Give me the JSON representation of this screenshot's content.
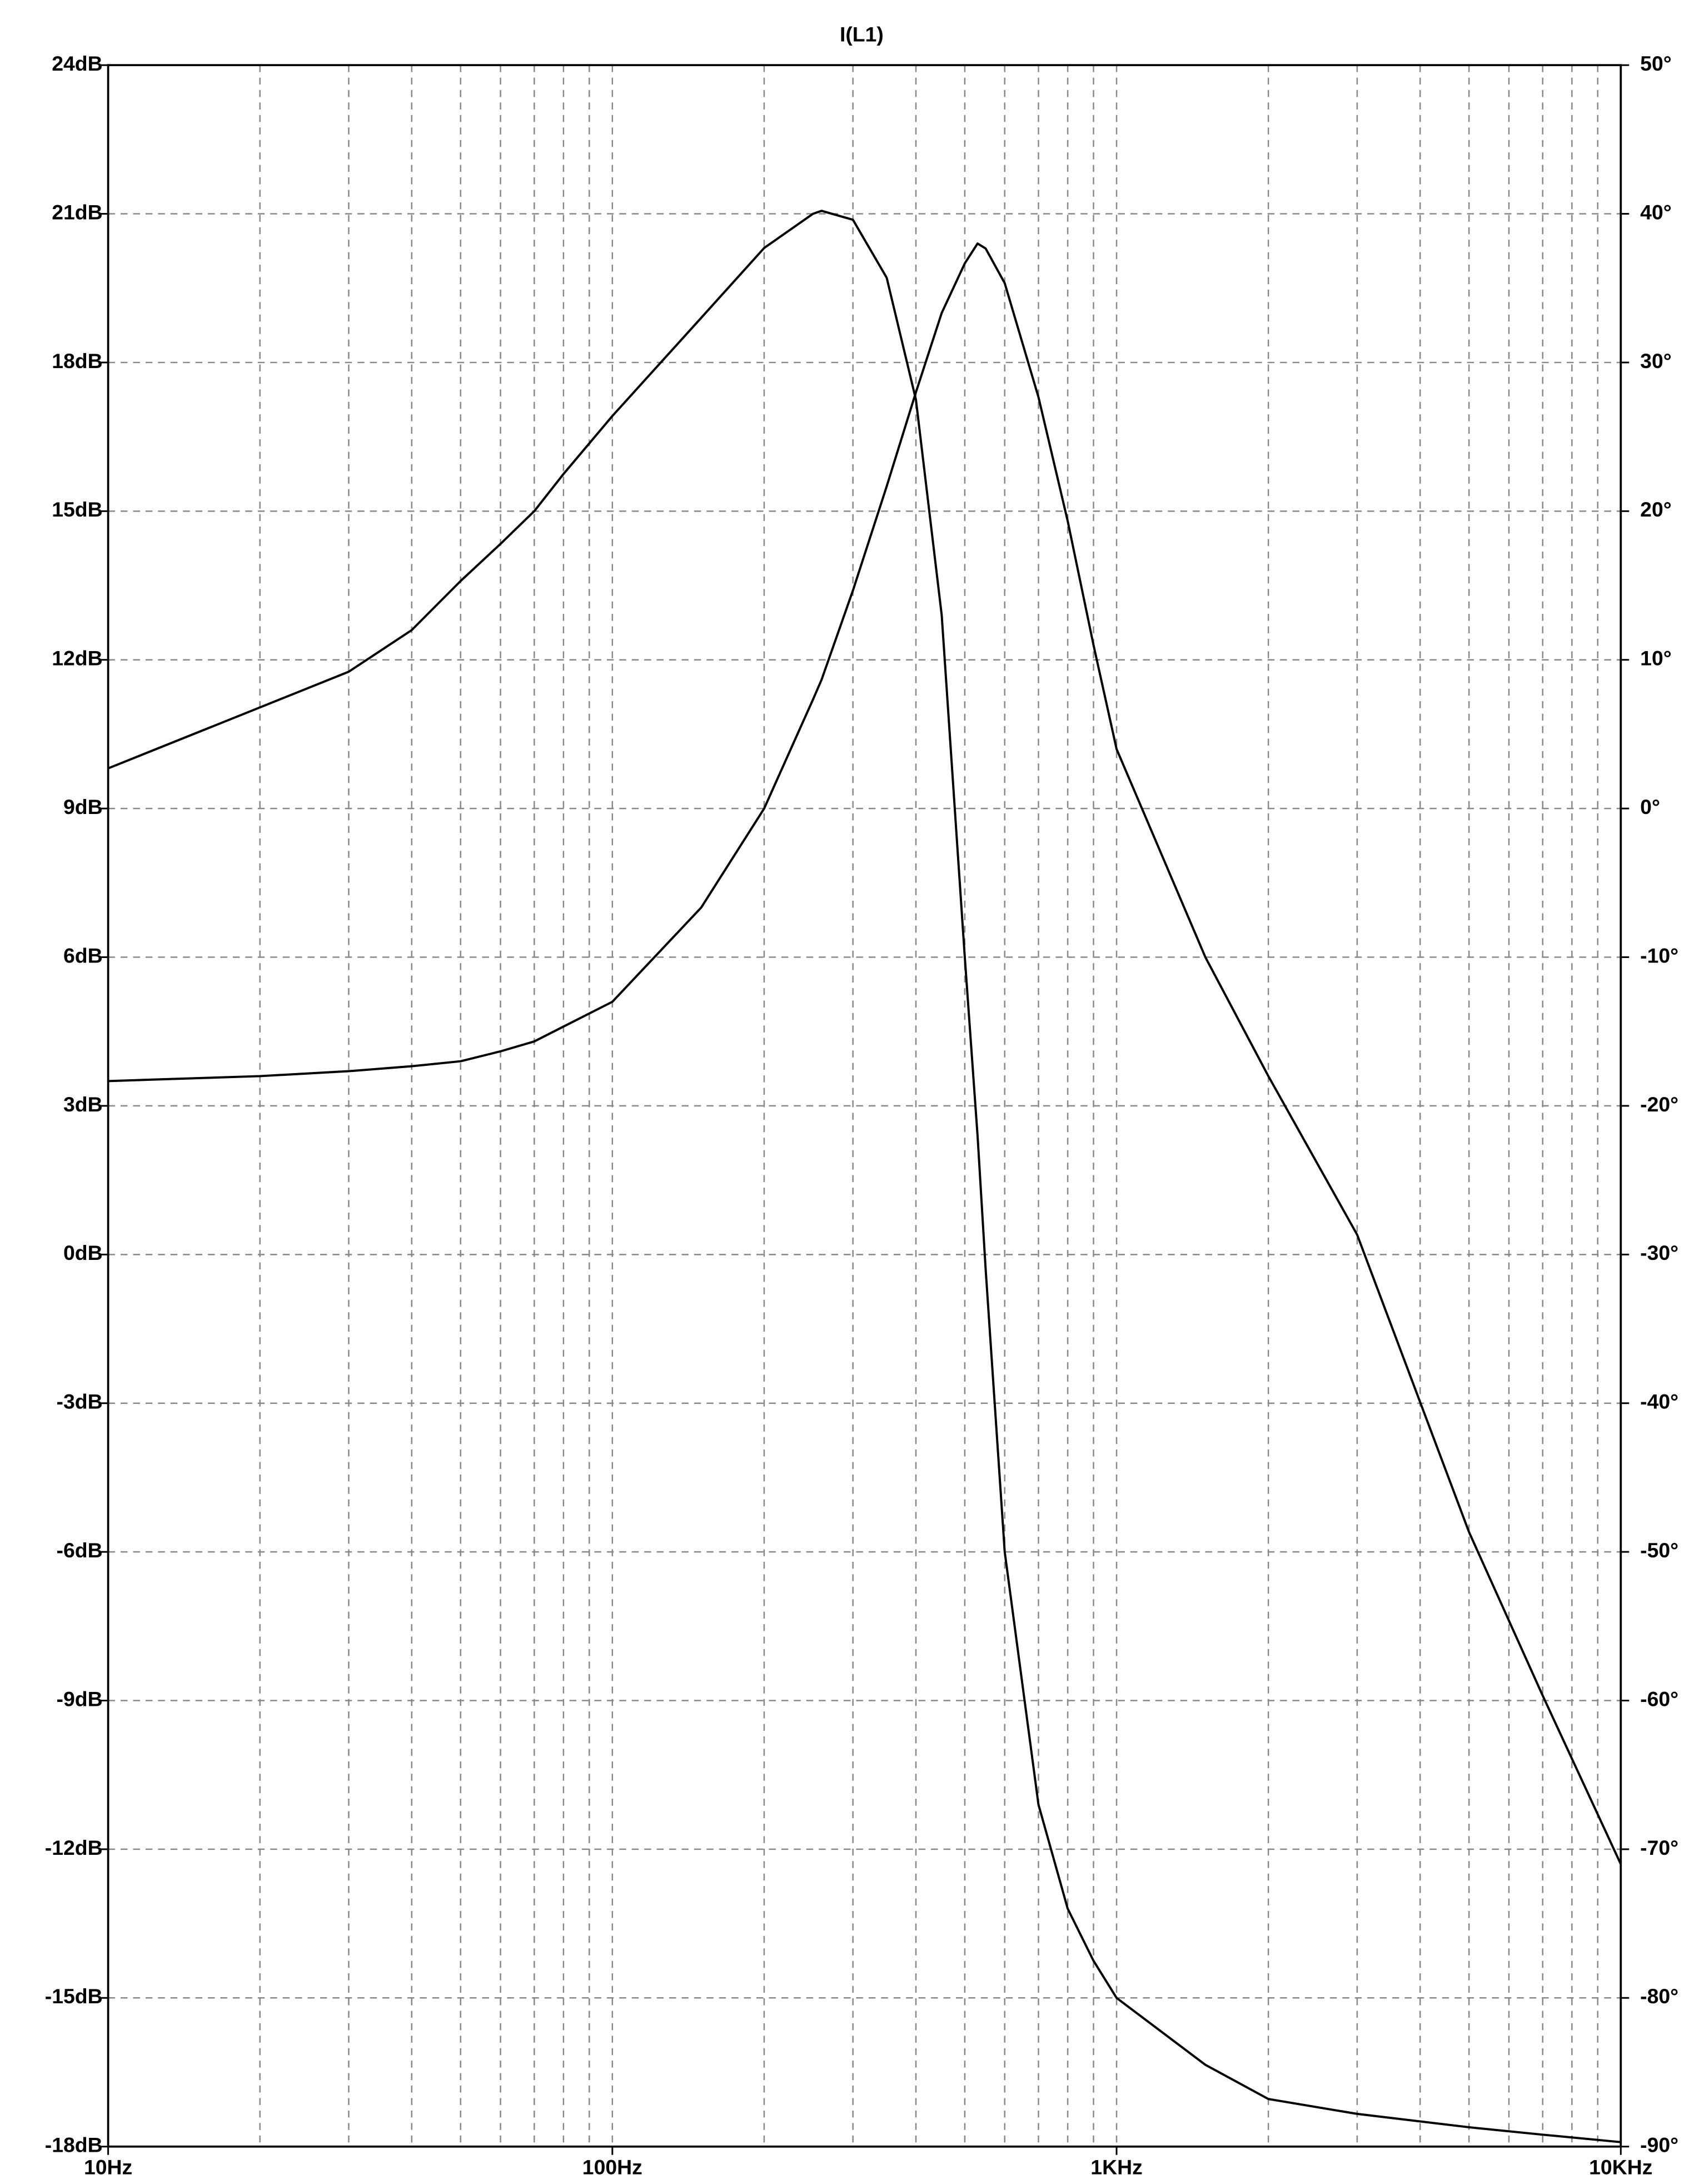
{
  "chart_data": {
    "type": "line",
    "title": "I(L1)",
    "xscale": "log",
    "grid": true,
    "grid_style": "dashed",
    "x": [
      10,
      20,
      30,
      40,
      50,
      60,
      70,
      80,
      100,
      150,
      200,
      250,
      260,
      300,
      350,
      400,
      450,
      500,
      530,
      550,
      600,
      700,
      800,
      900,
      1000,
      1500,
      2000,
      3000,
      5000,
      7000,
      10000
    ],
    "xlim": [
      10,
      10000
    ],
    "xticks": [
      {
        "value": 10,
        "label": "10Hz"
      },
      {
        "value": 100,
        "label": "100Hz"
      },
      {
        "value": 1000,
        "label": "1KHz"
      },
      {
        "value": 10000,
        "label": "10KHz"
      }
    ],
    "xminorticks": [
      20,
      30,
      40,
      50,
      60,
      70,
      80,
      90,
      200,
      300,
      400,
      500,
      600,
      700,
      800,
      900,
      2000,
      3000,
      4000,
      5000,
      6000,
      7000,
      8000,
      9000
    ],
    "ylim": [
      -18,
      24
    ],
    "yticks": [
      {
        "value": -18,
        "label": "-18dB"
      },
      {
        "value": -15,
        "label": "-15dB"
      },
      {
        "value": -12,
        "label": "-12dB"
      },
      {
        "value": -9,
        "label": "-9dB"
      },
      {
        "value": -6,
        "label": "-6dB"
      },
      {
        "value": -3,
        "label": "-3dB"
      },
      {
        "value": 0,
        "label": "0dB"
      },
      {
        "value": 3,
        "label": "3dB"
      },
      {
        "value": 6,
        "label": "6dB"
      },
      {
        "value": 9,
        "label": "9dB"
      },
      {
        "value": 12,
        "label": "12dB"
      },
      {
        "value": 15,
        "label": "15dB"
      },
      {
        "value": 18,
        "label": "18dB"
      },
      {
        "value": 21,
        "label": "21dB"
      },
      {
        "value": 24,
        "label": "24dB"
      }
    ],
    "y2lim": [
      -90,
      50
    ],
    "y2ticks": [
      {
        "value": -90,
        "label": "-90°"
      },
      {
        "value": -80,
        "label": "-80°"
      },
      {
        "value": -70,
        "label": "-70°"
      },
      {
        "value": -60,
        "label": "-60°"
      },
      {
        "value": -50,
        "label": "-50°"
      },
      {
        "value": -40,
        "label": "-40°"
      },
      {
        "value": -30,
        "label": "-30°"
      },
      {
        "value": -20,
        "label": "-20°"
      },
      {
        "value": -10,
        "label": "-10°"
      },
      {
        "value": 0,
        "label": "0°"
      },
      {
        "value": 10,
        "label": "10°"
      },
      {
        "value": 20,
        "label": "20°"
      },
      {
        "value": 30,
        "label": "30°"
      },
      {
        "value": 40,
        "label": "40°"
      },
      {
        "value": 50,
        "label": "50°"
      }
    ],
    "series": [
      {
        "color": "#000000",
        "values": [
          3.5,
          3.6,
          3.7,
          3.8,
          3.9,
          4.1,
          4.3,
          4.6,
          5.1,
          7.0,
          9.0,
          11.2,
          11.6,
          13.4,
          15.5,
          17.4,
          19.0,
          20.0,
          20.4,
          20.3,
          19.6,
          17.3,
          14.8,
          12.3,
          10.2,
          6.0,
          3.6,
          0.4,
          -5.6,
          -8.9,
          -12.3
        ]
      },
      {
        "color": "#000000",
        "axis": "y2",
        "values": [
          2.7,
          6.8,
          9.2,
          12,
          15.3,
          17.8,
          20,
          22.5,
          26.4,
          33,
          37.7,
          40,
          40.2,
          39.6,
          35.7,
          27.5,
          13,
          -10,
          -22,
          -31,
          -50,
          -67,
          -74,
          -77.5,
          -80,
          -84.5,
          -86.8,
          -87.8,
          -88.7,
          -89.2,
          -89.7
        ]
      }
    ]
  }
}
